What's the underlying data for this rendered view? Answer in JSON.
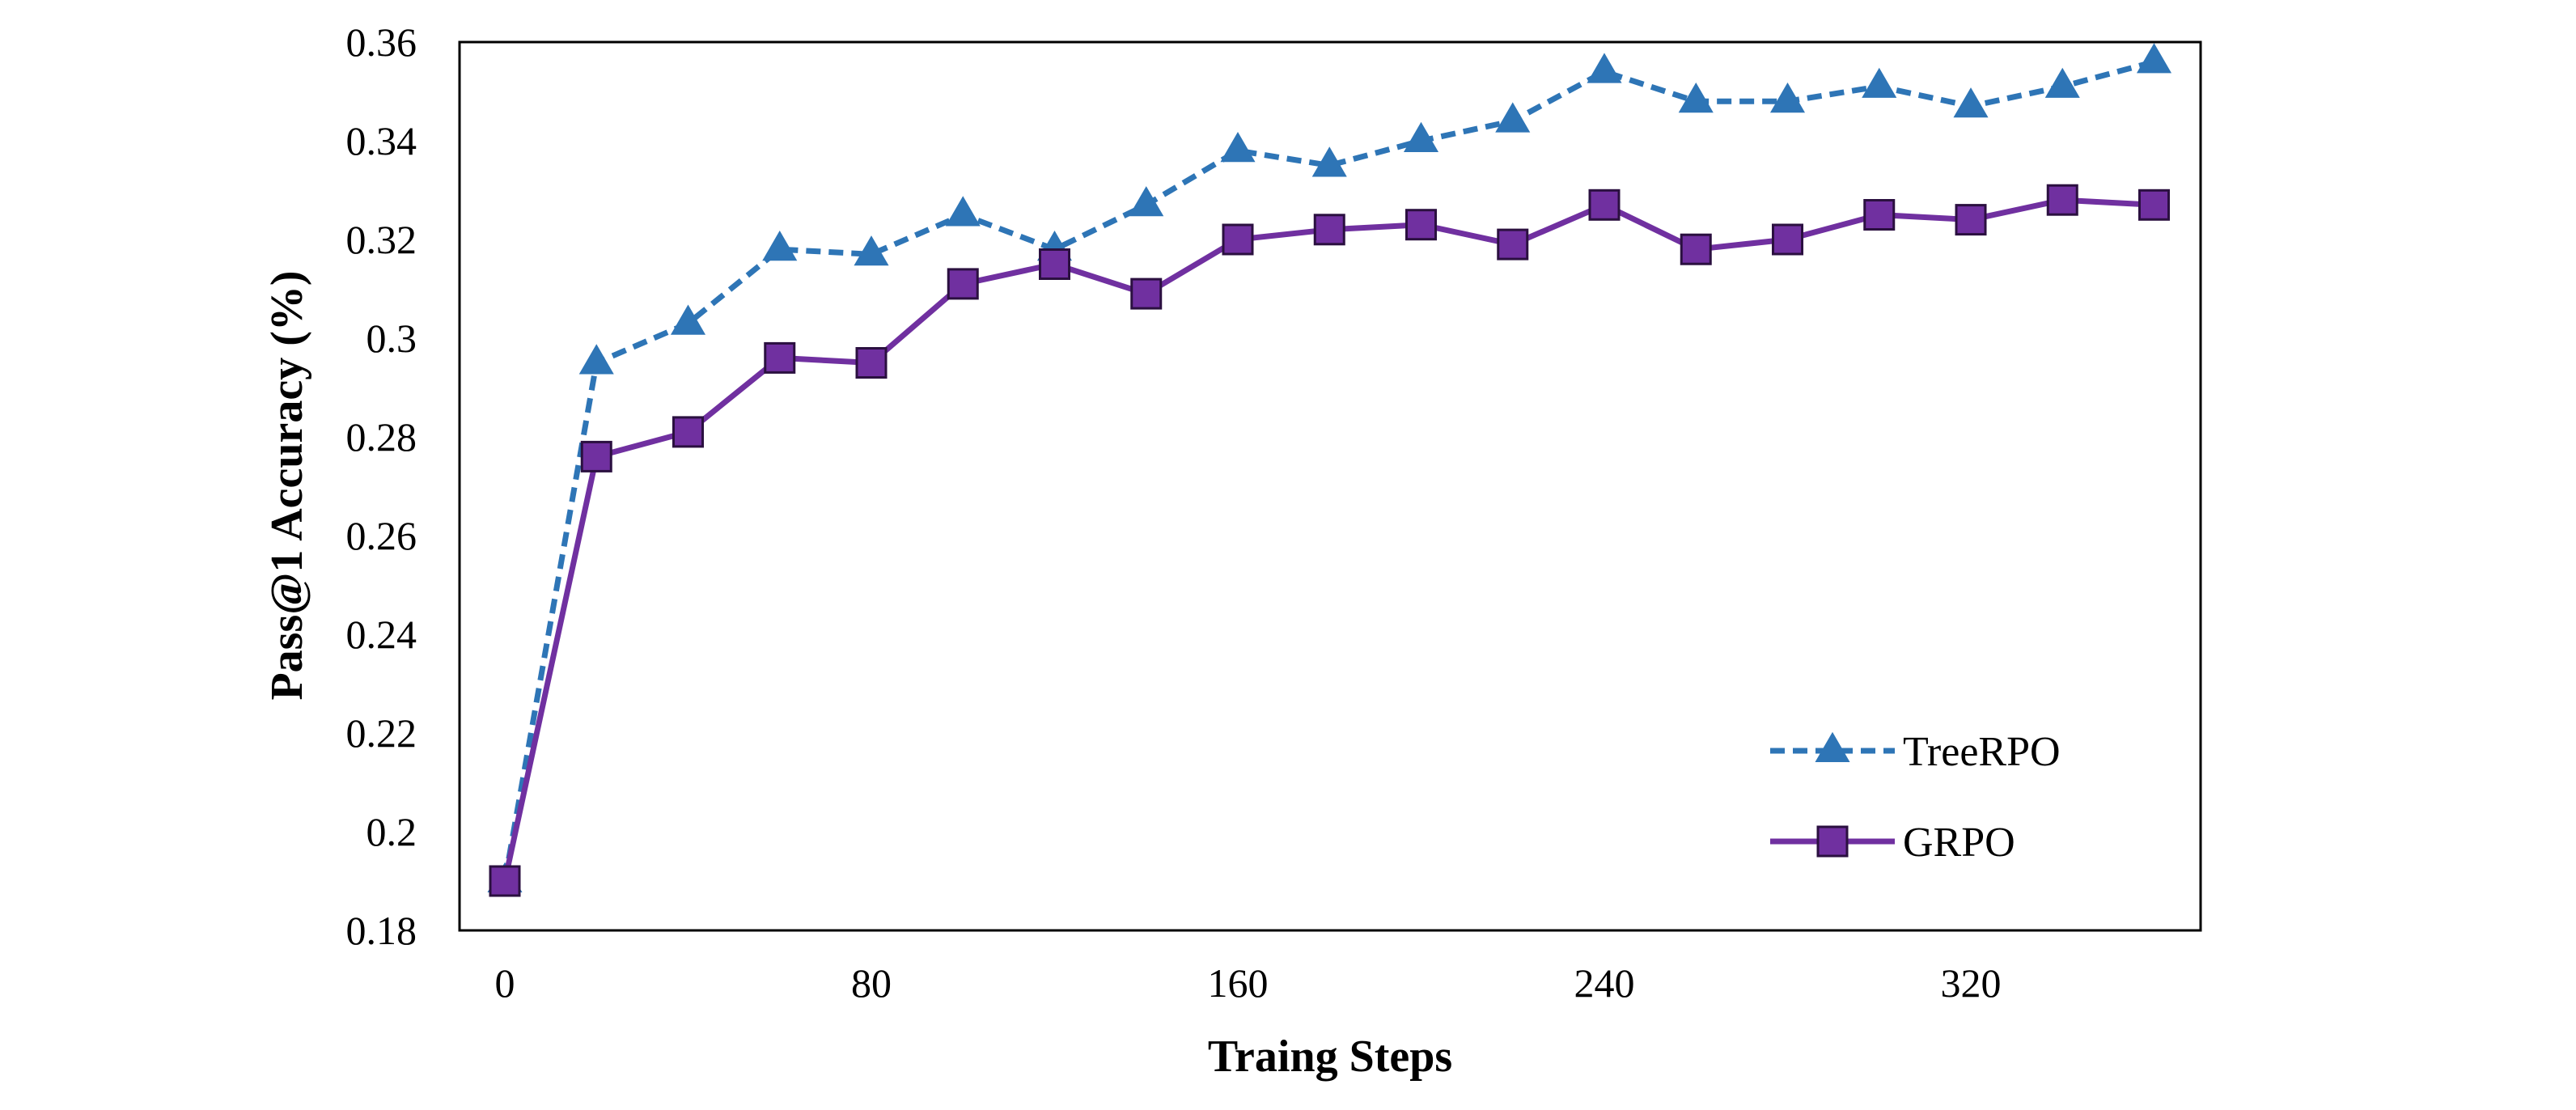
{
  "chart_data": {
    "type": "line",
    "title": "",
    "xlabel": "Traing Steps",
    "ylabel": "Pass@1 Accuracy (%)",
    "xlim": [
      -5,
      370
    ],
    "ylim": [
      0.18,
      0.36
    ],
    "x_ticks": [
      0,
      80,
      160,
      240,
      320
    ],
    "x_tick_labels": [
      "0",
      "80",
      "160",
      "240",
      "320"
    ],
    "y_ticks": [
      0.18,
      0.2,
      0.22,
      0.24,
      0.26,
      0.28,
      0.3,
      0.32,
      0.34,
      0.36
    ],
    "y_tick_labels": [
      "0.18",
      "0.2",
      "0.22",
      "0.24",
      "0.26",
      "0.28",
      "0.3",
      "0.32",
      "0.34",
      "0.36"
    ],
    "x": [
      0,
      20,
      40,
      60,
      80,
      100,
      120,
      140,
      160,
      180,
      200,
      220,
      240,
      260,
      280,
      300,
      320,
      340,
      360
    ],
    "series": [
      {
        "name": "TreeRPO",
        "values": [
          0.19,
          0.295,
          0.303,
          0.318,
          0.317,
          0.325,
          0.318,
          0.327,
          0.338,
          0.335,
          0.34,
          0.344,
          0.354,
          0.348,
          0.348,
          0.351,
          0.347,
          0.351,
          0.356
        ],
        "color": "#2E75B6",
        "line_style": "dashed",
        "marker": "triangle"
      },
      {
        "name": "GRPO",
        "values": [
          0.19,
          0.276,
          0.281,
          0.296,
          0.295,
          0.311,
          0.315,
          0.309,
          0.32,
          0.322,
          0.323,
          0.319,
          0.327,
          0.318,
          0.32,
          0.325,
          0.324,
          0.328,
          0.327
        ],
        "color": "#7030A0",
        "line_style": "solid",
        "marker": "square"
      }
    ],
    "grid": false,
    "legend_position": "bottom-right"
  }
}
